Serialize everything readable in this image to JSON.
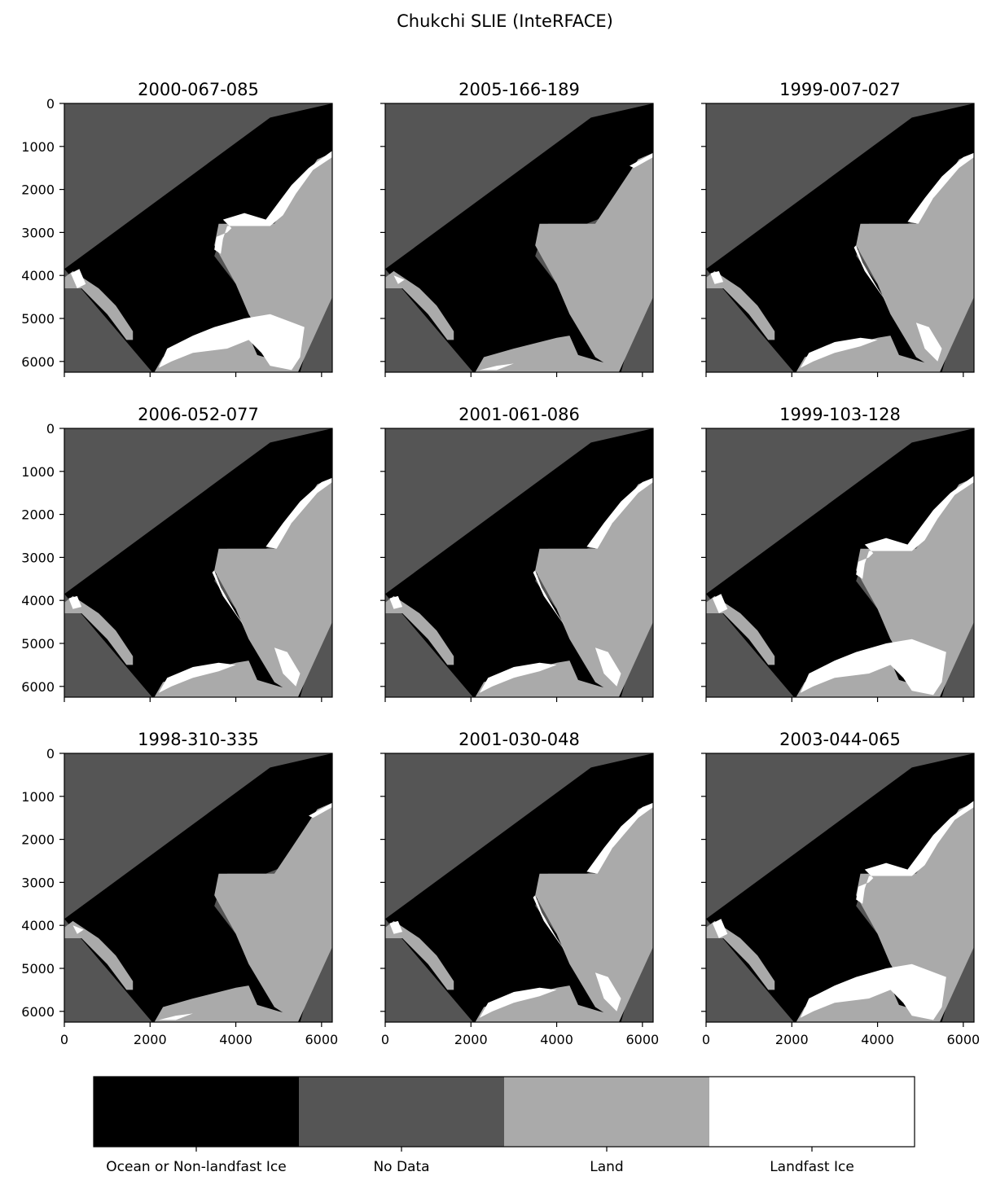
{
  "figure": {
    "title": "Chukchi SLIE (InteRFACE)"
  },
  "colors": {
    "ocean": "#000000",
    "nodata": "#555555",
    "land": "#aaaaaa",
    "landfast": "#ffffff",
    "axis": "#000000"
  },
  "chart_data": {
    "type": "heatmap",
    "description_grid": "3x3 small multiples of classified raster maps sharing axes",
    "x_ticks": [
      "0",
      "2000",
      "4000",
      "6000"
    ],
    "y_ticks": [
      "0",
      "1000",
      "2000",
      "3000",
      "4000",
      "5000",
      "6000"
    ],
    "xlim": [
      0,
      6250
    ],
    "ylim": [
      6250,
      0
    ],
    "panels": [
      {
        "title": "2000-067-085",
        "landfast": "wide"
      },
      {
        "title": "2005-166-189",
        "landfast": "minimal"
      },
      {
        "title": "1999-007-027",
        "landfast": "narrow"
      },
      {
        "title": "2006-052-077",
        "landfast": "narrow"
      },
      {
        "title": "2001-061-086",
        "landfast": "narrow"
      },
      {
        "title": "1999-103-128",
        "landfast": "wide"
      },
      {
        "title": "1998-310-335",
        "landfast": "minimal"
      },
      {
        "title": "2001-030-048",
        "landfast": "narrow"
      },
      {
        "title": "2003-044-065",
        "landfast": "wide"
      }
    ],
    "colorbar": {
      "categories": [
        "Ocean or Non-landfast Ice",
        "No Data",
        "Land",
        "Landfast Ice"
      ],
      "values": [
        0,
        1,
        2,
        3
      ]
    }
  }
}
